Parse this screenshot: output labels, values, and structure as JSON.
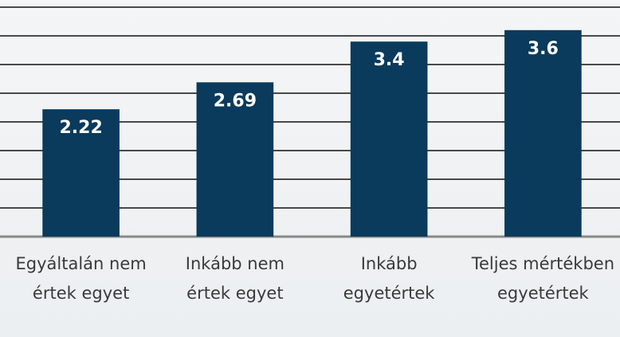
{
  "chart_data": {
    "type": "bar",
    "categories": [
      "Egyáltalán nem értek egyet",
      "Inkább nem értek egyet",
      "Inkább egyetértek",
      "Teljes mértékben egyetértek"
    ],
    "values": [
      2.22,
      2.69,
      3.4,
      3.6
    ],
    "color": "#0a3a5c",
    "ylim": [
      0,
      4
    ],
    "yticks": [
      0,
      0.5,
      1,
      1.5,
      2,
      2.5,
      3,
      3.5,
      4
    ],
    "grid": true
  }
}
